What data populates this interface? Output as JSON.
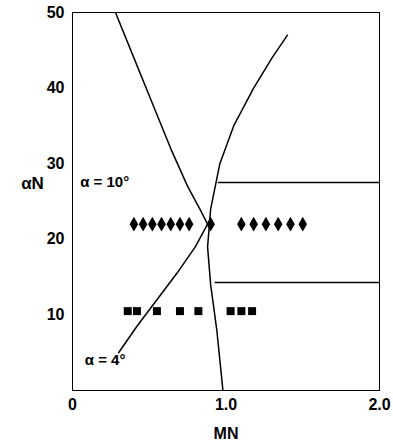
{
  "chart_data": {
    "type": "line",
    "x_label": "MN",
    "y_label": "αN",
    "xlim": [
      0,
      2.0
    ],
    "ylim": [
      0,
      50
    ],
    "xticks": [
      0,
      {
        "value": 1.0,
        "label": "1.0"
      },
      {
        "value": 2.0,
        "label": "2.0"
      }
    ],
    "yticks": [
      10,
      20,
      30,
      40,
      50
    ],
    "grid": false,
    "series": [
      {
        "type": "line",
        "color": "#000000",
        "line_style": "solid",
        "x": [
          0.28,
          0.4,
          0.52,
          0.64,
          0.75,
          0.83,
          0.88
        ],
        "values": [
          50,
          44,
          38,
          32,
          27,
          24,
          22
        ]
      },
      {
        "type": "line",
        "color": "#000000",
        "line_style": "solid",
        "x": [
          0.88,
          0.8,
          0.68,
          0.55,
          0.42,
          0.3
        ],
        "values": [
          22,
          19,
          15.5,
          12,
          8.5,
          5
        ]
      },
      {
        "type": "line",
        "color": "#000000",
        "line_style": "solid",
        "x": [
          0.98,
          0.94,
          0.9,
          0.88,
          0.9,
          0.96,
          1.05,
          1.18,
          1.3,
          1.4
        ],
        "values": [
          0,
          8,
          14,
          19,
          24,
          30,
          35,
          40,
          44,
          47
        ]
      },
      {
        "type": "line",
        "color": "#000000",
        "line_style": "solid",
        "x": [
          0.95,
          2.0
        ],
        "values": [
          27.5,
          27.5
        ]
      },
      {
        "type": "line",
        "color": "#000000",
        "line_style": "solid",
        "x": [
          0.93,
          2.0
        ],
        "values": [
          14.3,
          14.3
        ]
      },
      {
        "type": "scatter",
        "color": "#000000",
        "marker": "diamond",
        "x": [
          0.4,
          0.46,
          0.52,
          0.58,
          0.64,
          0.7,
          0.76,
          0.9,
          1.1,
          1.18,
          1.26,
          1.34,
          1.42,
          1.5
        ],
        "values": [
          22,
          22,
          22,
          22,
          22,
          22,
          22,
          22,
          22,
          22,
          22,
          22,
          22,
          22
        ]
      },
      {
        "type": "scatter",
        "color": "#000000",
        "marker": "square",
        "x": [
          0.36,
          0.42,
          0.55,
          0.7,
          0.82,
          1.03,
          1.1,
          1.17
        ],
        "values": [
          10.5,
          10.5,
          10.5,
          10.5,
          10.5,
          10.5,
          10.5,
          10.5
        ]
      }
    ],
    "annotations": [
      {
        "text": "α = 10°",
        "x": 0.05,
        "y": 27.5
      },
      {
        "text": "α = 4°",
        "x": 0.08,
        "y": 4
      }
    ]
  }
}
